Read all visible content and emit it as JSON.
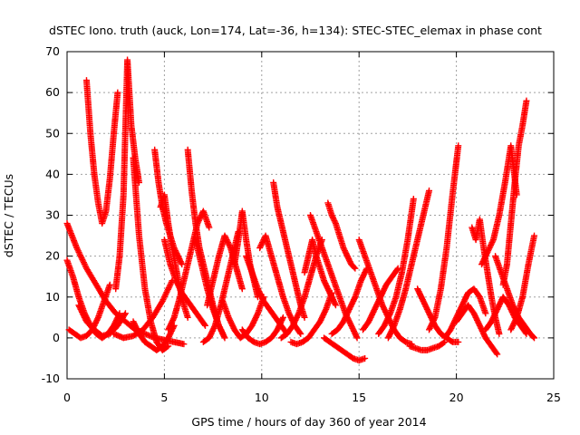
{
  "chart_data": {
    "type": "scatter",
    "title": "dSTEC Iono. truth (auck, Lon=174, Lat=-36, h=134): STEC-STEC_elemax in phase cont",
    "xlabel": "GPS time / hours of day 360 of year 2014",
    "ylabel": "dSTEC  / TECUs",
    "xlim": [
      0,
      25
    ],
    "ylim": [
      -10,
      70
    ],
    "xticks": [
      0,
      5,
      10,
      15,
      20,
      25
    ],
    "yticks": [
      -10,
      0,
      10,
      20,
      30,
      40,
      50,
      60,
      70
    ],
    "xtick_labels": [
      "0",
      "5",
      "10",
      "15",
      "20",
      "25"
    ],
    "ytick_labels": [
      "-10",
      "0",
      "10",
      "20",
      "30",
      "40",
      "50",
      "60",
      "70"
    ],
    "grid": true,
    "marker": "plus",
    "color": "#ff0000",
    "series": [
      {
        "x": [
          0.0,
          0.5,
          1.0,
          1.5,
          2.0,
          2.5,
          3.0,
          3.5,
          4.0,
          4.5,
          5.0,
          5.5,
          6.0
        ],
        "y": [
          28,
          22,
          17,
          13,
          9,
          6,
          4,
          2,
          1,
          0,
          -0.5,
          -1,
          -1.5
        ]
      },
      {
        "x": [
          0.0,
          0.3,
          0.6,
          0.9,
          1.2,
          1.5,
          1.8,
          2.1,
          2.4,
          2.7
        ],
        "y": [
          19,
          15,
          10,
          6,
          3,
          1,
          0,
          1,
          3,
          6
        ]
      },
      {
        "x": [
          0.1,
          0.4,
          0.7,
          1.0,
          1.3,
          1.6,
          1.9,
          2.2
        ],
        "y": [
          2,
          1,
          0,
          0.5,
          2,
          5,
          9,
          13
        ]
      },
      {
        "x": [
          1.0,
          1.2,
          1.4,
          1.6,
          1.8,
          2.0,
          2.2,
          2.4,
          2.6
        ],
        "y": [
          63,
          50,
          40,
          33,
          28,
          31,
          39,
          50,
          60
        ]
      },
      {
        "x": [
          0.6,
          1.0,
          1.4,
          1.8,
          2.2,
          2.6,
          3.0
        ],
        "y": [
          8,
          4,
          2,
          0.5,
          1,
          3,
          6
        ]
      },
      {
        "x": [
          2.5,
          2.7,
          2.9,
          3.1,
          3.3,
          3.5,
          3.7
        ],
        "y": [
          12,
          20,
          35,
          68,
          52,
          44,
          38
        ]
      },
      {
        "x": [
          2.4,
          2.9,
          3.4,
          3.9,
          4.4,
          4.9,
          5.4
        ],
        "y": [
          1,
          0,
          0.5,
          2,
          5,
          9,
          14
        ]
      },
      {
        "x": [
          3.4,
          3.7,
          4.0,
          4.3,
          4.6,
          4.9,
          5.2
        ],
        "y": [
          44,
          25,
          12,
          4,
          -1,
          -3,
          -2
        ]
      },
      {
        "x": [
          3.4,
          3.7,
          4.0,
          4.3,
          4.6,
          4.9,
          5.2,
          5.5
        ],
        "y": [
          4,
          1,
          -1,
          -2,
          -3,
          -2,
          0,
          3
        ]
      },
      {
        "x": [
          4.5,
          4.7,
          4.9,
          5.1,
          5.3,
          5.5,
          5.7,
          5.9
        ],
        "y": [
          46,
          38,
          32,
          28,
          25,
          22,
          20,
          18
        ]
      },
      {
        "x": [
          4.8,
          5.0,
          5.2,
          5.4,
          5.6,
          5.8,
          6.0,
          6.2
        ],
        "y": [
          32,
          35,
          28,
          22,
          17,
          12,
          8,
          5
        ]
      },
      {
        "x": [
          5.0,
          5.3,
          5.6,
          5.9,
          6.2,
          6.5,
          6.8,
          7.1
        ],
        "y": [
          24,
          18,
          14,
          11,
          9,
          7,
          5,
          3
        ]
      },
      {
        "x": [
          5.2,
          5.5,
          5.8,
          6.1,
          6.4,
          6.7,
          7.0,
          7.3
        ],
        "y": [
          2,
          5,
          10,
          16,
          22,
          28,
          31,
          27
        ]
      },
      {
        "x": [
          6.2,
          6.4,
          6.6,
          6.8,
          7.0,
          7.2,
          7.4,
          7.6,
          7.8,
          8.0
        ],
        "y": [
          46,
          36,
          28,
          22,
          18,
          14,
          10,
          6,
          3,
          1
        ]
      },
      {
        "x": [
          6.6,
          6.9,
          7.2,
          7.5,
          7.8,
          8.1
        ],
        "y": [
          24,
          18,
          12,
          7,
          3,
          0
        ]
      },
      {
        "x": [
          7.0,
          7.3,
          7.6,
          7.9,
          8.2,
          8.5,
          8.8
        ],
        "y": [
          -1,
          0,
          3,
          8,
          14,
          20,
          26
        ]
      },
      {
        "x": [
          7.2,
          7.5,
          7.8,
          8.1,
          8.4,
          8.7,
          9.0
        ],
        "y": [
          8,
          14,
          20,
          25,
          22,
          17,
          12
        ]
      },
      {
        "x": [
          8.0,
          8.3,
          8.6,
          8.9,
          9.2,
          9.5,
          9.8,
          10.1
        ],
        "y": [
          9,
          5,
          2,
          0,
          1,
          3,
          6,
          10
        ]
      },
      {
        "x": [
          8.6,
          8.8,
          9.0,
          9.2,
          9.4,
          9.6,
          9.8
        ],
        "y": [
          18,
          24,
          31,
          24,
          18,
          14,
          10
        ]
      },
      {
        "x": [
          9.0,
          9.3,
          9.6,
          9.9,
          10.2,
          10.5,
          10.8,
          11.1
        ],
        "y": [
          2,
          0,
          -1,
          -1.5,
          -1,
          0,
          2,
          5
        ]
      },
      {
        "x": [
          9.2,
          9.5,
          9.8,
          10.1,
          10.4,
          10.7,
          11.0,
          11.3
        ],
        "y": [
          20,
          16,
          12,
          9,
          7,
          5,
          3,
          1
        ]
      },
      {
        "x": [
          9.9,
          10.2,
          10.5,
          10.8,
          11.1,
          11.4,
          11.7,
          12.0
        ],
        "y": [
          22,
          25,
          20,
          15,
          10,
          6,
          3,
          1
        ]
      },
      {
        "x": [
          10.6,
          10.8,
          11.0,
          11.2,
          11.4,
          11.6,
          11.8,
          12.0,
          12.2
        ],
        "y": [
          38,
          32,
          28,
          24,
          20,
          16,
          12,
          8,
          5
        ]
      },
      {
        "x": [
          11.0,
          11.3,
          11.6,
          11.9,
          12.2,
          12.5,
          12.8,
          13.1
        ],
        "y": [
          0,
          1,
          3,
          6,
          10,
          15,
          20,
          24
        ]
      },
      {
        "x": [
          11.5,
          11.8,
          12.1,
          12.4,
          12.7,
          13.0,
          13.3,
          13.6
        ],
        "y": [
          -1,
          -1.5,
          -1,
          0,
          2,
          4,
          7,
          11
        ]
      },
      {
        "x": [
          12.2,
          12.4,
          12.6,
          12.8,
          13.0,
          13.2,
          13.4,
          13.6,
          13.8
        ],
        "y": [
          16,
          20,
          24,
          20,
          17,
          14,
          12,
          10,
          8
        ]
      },
      {
        "x": [
          12.5,
          12.8,
          13.1,
          13.4,
          13.7,
          14.0,
          14.3,
          14.6,
          14.9
        ],
        "y": [
          30,
          26,
          22,
          18,
          14,
          10,
          6,
          3,
          0
        ]
      },
      {
        "x": [
          13.2,
          13.5,
          13.8,
          14.1,
          14.4,
          14.7,
          15.0,
          15.3
        ],
        "y": [
          0,
          -1,
          -2,
          -3,
          -4,
          -5,
          -5.5,
          -5
        ]
      },
      {
        "x": [
          13.4,
          13.6,
          13.8,
          14.0,
          14.2,
          14.4,
          14.6,
          14.8
        ],
        "y": [
          33,
          30,
          28,
          25,
          22,
          20,
          18,
          17
        ]
      },
      {
        "x": [
          13.6,
          13.9,
          14.2,
          14.5,
          14.8,
          15.1,
          15.4
        ],
        "y": [
          1,
          2,
          4,
          7,
          10,
          14,
          17
        ]
      },
      {
        "x": [
          15.0,
          15.3,
          15.6,
          15.9,
          16.2,
          16.5,
          16.8,
          17.1,
          17.4,
          17.7
        ],
        "y": [
          24,
          20,
          16,
          12,
          8,
          5,
          2,
          0,
          -1,
          -1.5
        ]
      },
      {
        "x": [
          15.2,
          15.5,
          15.8,
          16.1,
          16.4,
          16.7,
          17.0
        ],
        "y": [
          2,
          4,
          7,
          10,
          13,
          15,
          17
        ]
      },
      {
        "x": [
          16.0,
          16.3,
          16.6,
          16.9,
          17.2,
          17.5,
          17.8
        ],
        "y": [
          1,
          3,
          6,
          10,
          16,
          24,
          34
        ]
      },
      {
        "x": [
          16.5,
          16.8,
          17.1,
          17.4,
          17.7,
          18.0,
          18.3,
          18.6
        ],
        "y": [
          0,
          3,
          7,
          12,
          18,
          24,
          30,
          36
        ]
      },
      {
        "x": [
          17.6,
          17.9,
          18.2,
          18.5,
          18.8,
          19.1,
          19.4
        ],
        "y": [
          -2,
          -2.5,
          -3,
          -3,
          -2.5,
          -2,
          -1
        ]
      },
      {
        "x": [
          18.0,
          18.3,
          18.6,
          18.9,
          19.2,
          19.5,
          19.8,
          20.1
        ],
        "y": [
          12,
          9,
          6,
          3,
          1,
          0,
          -1,
          -1
        ]
      },
      {
        "x": [
          18.6,
          18.9,
          19.2,
          19.5,
          19.8,
          20.1
        ],
        "y": [
          2,
          5,
          12,
          22,
          35,
          47
        ]
      },
      {
        "x": [
          19.4,
          19.7,
          20.0,
          20.3,
          20.6,
          20.9,
          21.2,
          21.5
        ],
        "y": [
          0,
          2,
          5,
          8,
          11,
          12,
          10,
          6
        ]
      },
      {
        "x": [
          20.0,
          20.3,
          20.6,
          20.9,
          21.2,
          21.5,
          21.8,
          22.1
        ],
        "y": [
          4,
          6,
          8,
          6,
          3,
          0,
          -2,
          -4
        ]
      },
      {
        "x": [
          20.8,
          21.0,
          21.2,
          21.4,
          21.6,
          21.8,
          22.0,
          22.2
        ],
        "y": [
          27,
          24,
          29,
          22,
          16,
          10,
          5,
          1
        ]
      },
      {
        "x": [
          21.3,
          21.6,
          21.9,
          22.2,
          22.5,
          22.8,
          23.1
        ],
        "y": [
          18,
          21,
          24,
          30,
          38,
          47,
          35
        ]
      },
      {
        "x": [
          21.5,
          21.8,
          22.1,
          22.4,
          22.7,
          23.0,
          23.3,
          23.6
        ],
        "y": [
          2,
          4,
          7,
          10,
          8,
          5,
          3,
          1
        ]
      },
      {
        "x": [
          22.0,
          22.3,
          22.6,
          22.9,
          23.2,
          23.5,
          23.8,
          24.0
        ],
        "y": [
          20,
          16,
          12,
          8,
          5,
          3,
          1,
          0
        ]
      },
      {
        "x": [
          22.4,
          22.6,
          22.8,
          23.0,
          23.2,
          23.4,
          23.6
        ],
        "y": [
          13,
          18,
          28,
          38,
          47,
          52,
          58
        ]
      },
      {
        "x": [
          22.8,
          23.1,
          23.4,
          23.7,
          24.0
        ],
        "y": [
          2,
          5,
          10,
          18,
          25
        ]
      }
    ]
  }
}
